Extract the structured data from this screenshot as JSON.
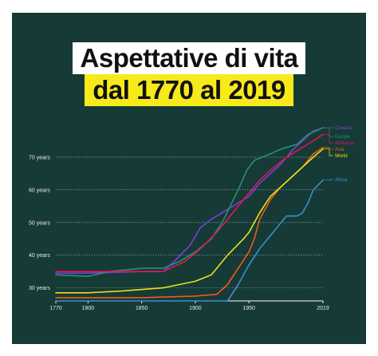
{
  "title": {
    "line1": "Aspettative di vita",
    "line2": "dal 1770 al 2019"
  },
  "colors": {
    "background": "#163a36",
    "title_highlight": "#f7ea1a",
    "grid": "#ffffff",
    "axis": "#ffffff",
    "text": "#e6ece9"
  },
  "chart_data": {
    "type": "line",
    "xlabel": "",
    "ylabel": "",
    "xlim": [
      1770,
      2019
    ],
    "ylim": [
      26,
      80
    ],
    "x_ticks": [
      "1770",
      "1800",
      "1850",
      "1900",
      "1950",
      "2019"
    ],
    "y_ticks": [
      {
        "value": 30,
        "label": "30 years"
      },
      {
        "value": 40,
        "label": "40 years"
      },
      {
        "value": 50,
        "label": "50 years"
      },
      {
        "value": 60,
        "label": "60 years"
      },
      {
        "value": 70,
        "label": "70 years"
      }
    ],
    "grid": "horizontal-dotted",
    "legend": "right-end-labels",
    "series": [
      {
        "name": "Oceania",
        "color": "#7b3fd6",
        "points": [
          [
            1770,
            34.5
          ],
          [
            1800,
            34.5
          ],
          [
            1850,
            35
          ],
          [
            1870,
            35
          ],
          [
            1880,
            38
          ],
          [
            1895,
            43
          ],
          [
            1905,
            48.5
          ],
          [
            1915,
            51
          ],
          [
            1930,
            54
          ],
          [
            1950,
            58
          ],
          [
            1960,
            62
          ],
          [
            1970,
            65
          ],
          [
            1980,
            68
          ],
          [
            1990,
            72
          ],
          [
            2000,
            75
          ],
          [
            2010,
            78
          ],
          [
            2019,
            79
          ]
        ]
      },
      {
        "name": "Europe",
        "color": "#2a8f76",
        "points": [
          [
            1770,
            34
          ],
          [
            1800,
            33.5
          ],
          [
            1820,
            35
          ],
          [
            1850,
            36
          ],
          [
            1870,
            36
          ],
          [
            1885,
            38
          ],
          [
            1900,
            41
          ],
          [
            1915,
            45
          ],
          [
            1925,
            50
          ],
          [
            1940,
            60
          ],
          [
            1948,
            66
          ],
          [
            1955,
            69
          ],
          [
            1970,
            71
          ],
          [
            1980,
            72.5
          ],
          [
            1995,
            74
          ],
          [
            2005,
            77
          ],
          [
            2019,
            79
          ]
        ]
      },
      {
        "name": "Americas",
        "color": "#e0165a",
        "points": [
          [
            1770,
            35
          ],
          [
            1800,
            35
          ],
          [
            1850,
            35
          ],
          [
            1870,
            35
          ],
          [
            1890,
            38
          ],
          [
            1905,
            42
          ],
          [
            1920,
            47
          ],
          [
            1935,
            53
          ],
          [
            1950,
            59
          ],
          [
            1960,
            63
          ],
          [
            1970,
            66
          ],
          [
            1985,
            70
          ],
          [
            2000,
            73
          ],
          [
            2010,
            75
          ],
          [
            2019,
            77
          ]
        ]
      },
      {
        "name": "Asia",
        "color": "#f05a1a",
        "points": [
          [
            1770,
            27
          ],
          [
            1800,
            27
          ],
          [
            1850,
            27
          ],
          [
            1900,
            27.5
          ],
          [
            1920,
            28
          ],
          [
            1930,
            31
          ],
          [
            1940,
            36
          ],
          [
            1950,
            41
          ],
          [
            1955,
            45
          ],
          [
            1960,
            51
          ],
          [
            1970,
            57
          ],
          [
            1980,
            61
          ],
          [
            1990,
            64
          ],
          [
            2000,
            67
          ],
          [
            2010,
            71
          ],
          [
            2019,
            73
          ]
        ]
      },
      {
        "name": "World",
        "color": "#e8e21c",
        "points": [
          [
            1770,
            28.5
          ],
          [
            1800,
            28.5
          ],
          [
            1830,
            29
          ],
          [
            1850,
            29.5
          ],
          [
            1870,
            30
          ],
          [
            1900,
            32
          ],
          [
            1915,
            34
          ],
          [
            1930,
            40
          ],
          [
            1945,
            45
          ],
          [
            1950,
            47
          ],
          [
            1960,
            53
          ],
          [
            1970,
            58
          ],
          [
            1980,
            61
          ],
          [
            1990,
            64
          ],
          [
            2000,
            67
          ],
          [
            2010,
            70
          ],
          [
            2019,
            72.5
          ]
        ]
      },
      {
        "name": "Africa",
        "color": "#3a8fd0",
        "points": [
          [
            1770,
            26
          ],
          [
            1850,
            26
          ],
          [
            1900,
            26
          ],
          [
            1930,
            26
          ],
          [
            1940,
            31
          ],
          [
            1950,
            37
          ],
          [
            1960,
            42
          ],
          [
            1970,
            46
          ],
          [
            1980,
            50
          ],
          [
            1985,
            52
          ],
          [
            1995,
            52
          ],
          [
            2000,
            53
          ],
          [
            2005,
            56
          ],
          [
            2010,
            60
          ],
          [
            2019,
            63
          ]
        ]
      }
    ]
  }
}
